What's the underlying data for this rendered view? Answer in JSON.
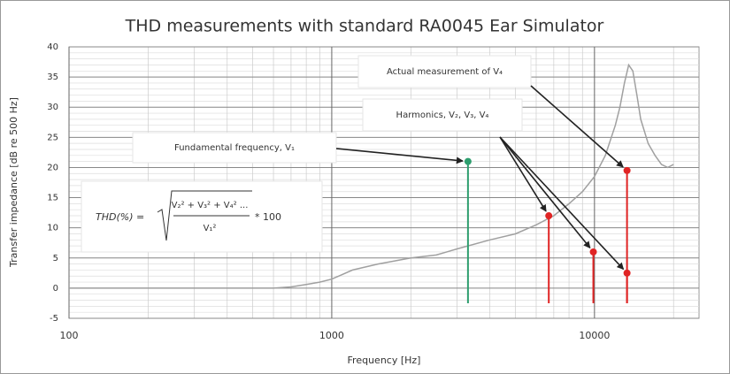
{
  "chart_data": {
    "type": "line",
    "title": "THD measurements with standard RA0045 Ear Simulator",
    "xlabel": "Frequency [Hz]",
    "ylabel": "Transfer impedance [dB re 500 Hz]",
    "xscale": "log",
    "xlim": [
      100,
      25000
    ],
    "ylim": [
      -5,
      40
    ],
    "xticks": [
      100,
      1000,
      10000
    ],
    "yticks": [
      -5,
      0,
      5,
      10,
      15,
      20,
      25,
      30,
      35,
      40
    ],
    "grid": true,
    "x": [
      100,
      200,
      300,
      400,
      500,
      600,
      700,
      800,
      900,
      1000,
      1200,
      1500,
      2000,
      2500,
      3000,
      4000,
      5000,
      6000,
      7000,
      8000,
      9000,
      10000,
      11000,
      12000,
      12500,
      13000,
      13500,
      14000,
      14500,
      15000,
      16000,
      17000,
      18000,
      19000,
      20000
    ],
    "values": [
      0,
      0,
      0,
      0,
      0,
      0,
      0.2,
      0.6,
      1,
      1.5,
      3,
      4,
      5,
      5.5,
      6.5,
      8,
      9,
      10.5,
      12,
      14,
      16,
      18.5,
      22,
      27,
      30,
      34,
      37,
      36,
      32,
      28,
      24,
      22,
      20.5,
      20,
      20.5
    ],
    "color": "#a0a0a0",
    "stems": [
      {
        "x": 3300,
        "value": 21,
        "base": -2.5,
        "color": "#2e9e6e"
      },
      {
        "x": 6700,
        "value": 12,
        "base": -2.5,
        "color": "#e02424"
      },
      {
        "x": 9900,
        "value": 6,
        "base": -2.5,
        "color": "#e02424"
      },
      {
        "x": 13300,
        "value": 2.5,
        "base": -2.5,
        "color": "#e02424"
      },
      {
        "x": 13300,
        "value": 19.5,
        "base": -2.5,
        "color": "#e02424"
      }
    ],
    "annotations": [
      "Fundamental frequency, V₁",
      "Harmonics, V₂, V₃, V₄",
      "Actual measurement of V₄"
    ],
    "formula": {
      "lhs": "THD(%) =",
      "numerator": "V₂² + V₃² + V₄² ...",
      "denominator": "V₁²",
      "factor": "* 100"
    }
  }
}
